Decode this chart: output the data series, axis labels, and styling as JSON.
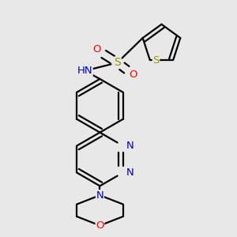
{
  "background_color": "#e8e8e8",
  "bond_color": "#000000",
  "N_color": "#0000cc",
  "O_color": "#ff0000",
  "S_color": "#999900",
  "H_color": "#607080",
  "figsize": [
    3.0,
    3.0
  ],
  "dpi": 100,
  "lw": 1.6,
  "fs": 9.5,
  "xlim": [
    0.1,
    0.9
  ],
  "ylim": [
    0.02,
    1.02
  ]
}
